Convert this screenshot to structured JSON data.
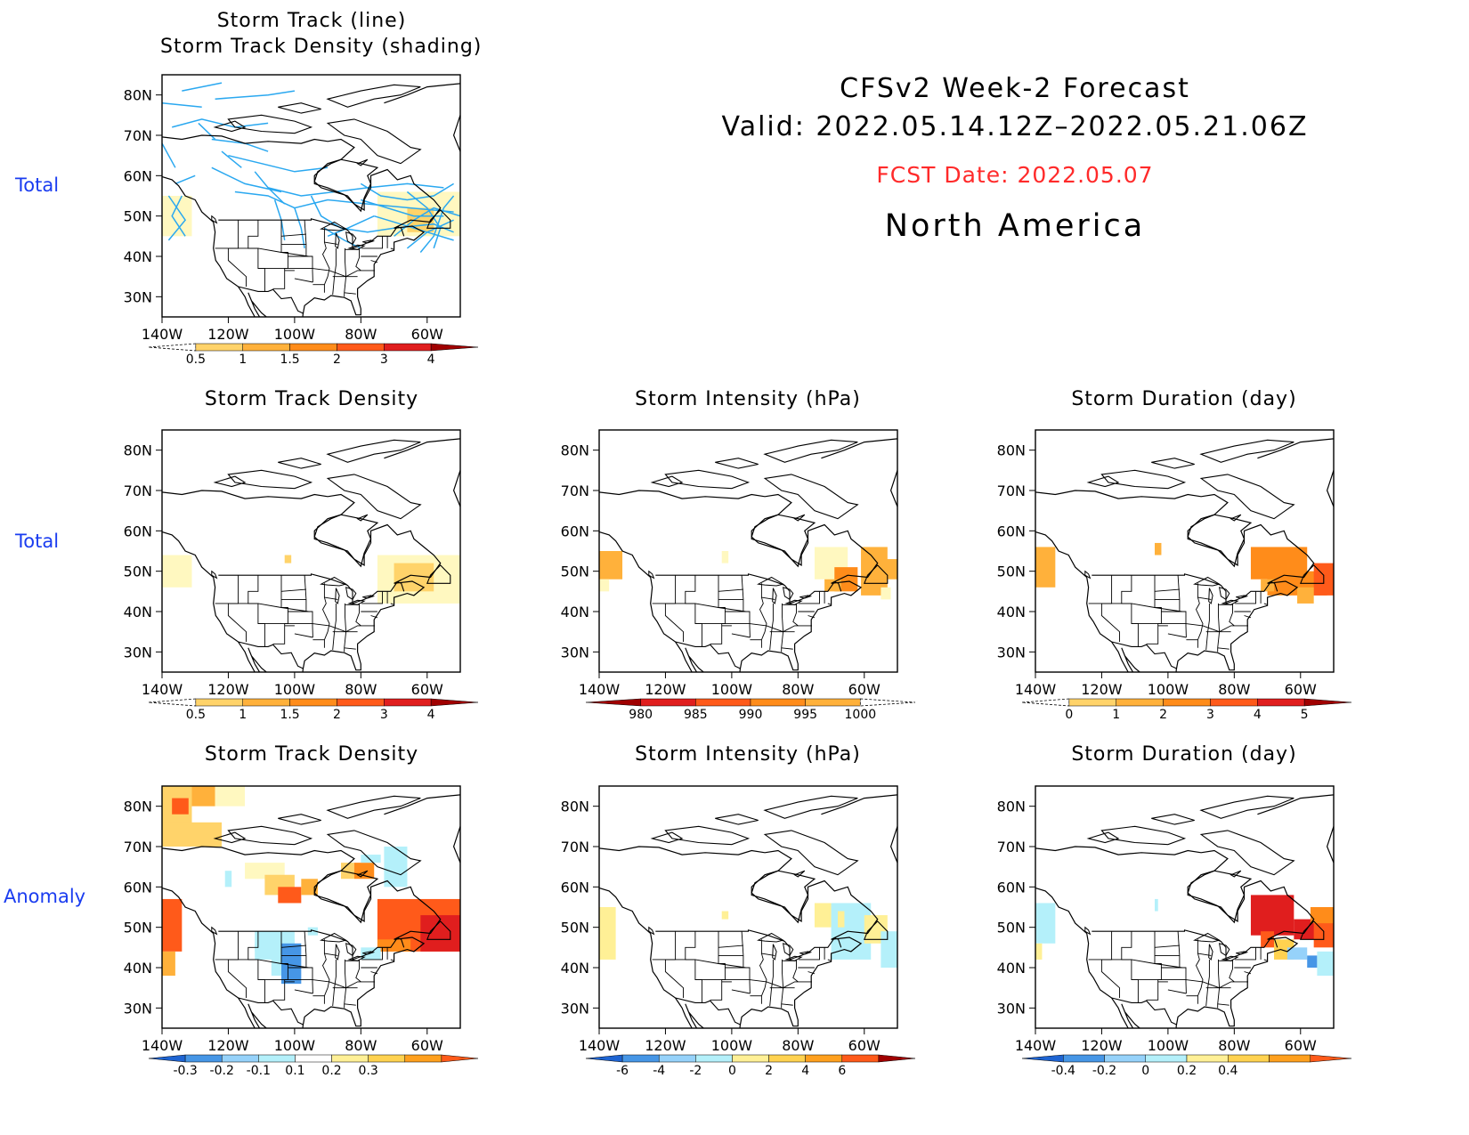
{
  "header": {
    "title": "CFSv2 Week-2 Forecast",
    "valid": "Valid: 2022.05.14.12Z–2022.05.21.06Z",
    "fcst_date": "FCST Date: 2022.05.07",
    "region": "North America",
    "fcst_color": "#ff2a2a"
  },
  "row_labels": [
    "Total",
    "Total",
    "Anomaly"
  ],
  "lat_labels": [
    "80N",
    "70N",
    "60N",
    "50N",
    "40N",
    "30N"
  ],
  "lon_labels": [
    "140W",
    "120W",
    "100W",
    "80W",
    "60W"
  ],
  "panels": [
    {
      "id": "p1",
      "title": "Storm Track (line)",
      "title2": "Storm Track Density (shading)",
      "kind": "track_total",
      "colorbar": {
        "colors": [
          "#fff8c0",
          "#ffd36a",
          "#ffb13b",
          "#ff8c1a",
          "#ff5a1a",
          "#e01e1e",
          "#a00000"
        ],
        "labels": [
          "0.5",
          "1",
          "1.5",
          "2",
          "3",
          "4"
        ],
        "dashed_left": true
      }
    },
    {
      "id": "p2",
      "title": "Storm Track Density",
      "kind": "density_total",
      "colorbar": {
        "colors": [
          "#fff8c0",
          "#ffd36a",
          "#ffb13b",
          "#ff8c1a",
          "#ff5a1a",
          "#e01e1e",
          "#a00000"
        ],
        "labels": [
          "0.5",
          "1",
          "1.5",
          "2",
          "3",
          "4"
        ],
        "dashed_left": true
      }
    },
    {
      "id": "p3",
      "title": "Storm Intensity (hPa)",
      "kind": "intensity_total",
      "colorbar": {
        "colors": [
          "#a00000",
          "#e01e1e",
          "#ff5a1a",
          "#ff8c1a",
          "#ffb13b",
          "#fff8c0"
        ],
        "labels": [
          "980",
          "985",
          "990",
          "995",
          "1000"
        ],
        "dashed_right": true
      }
    },
    {
      "id": "p4",
      "title": "Storm Duration (day)",
      "kind": "duration_total",
      "colorbar": {
        "colors": [
          "#fff8c0",
          "#ffd36a",
          "#ffb13b",
          "#ff8c1a",
          "#ff5a1a",
          "#e01e1e",
          "#a00000"
        ],
        "labels": [
          "0",
          "1",
          "2",
          "3",
          "4",
          "5"
        ],
        "dashed_left": true
      }
    },
    {
      "id": "p5",
      "title": "Storm Track Density",
      "kind": "density_anom",
      "colorbar": {
        "colors": [
          "#1e64d2",
          "#4696e6",
          "#96d2fa",
          "#b4f0fa",
          "#ffffff",
          "#fff096",
          "#ffd250",
          "#ffa01e",
          "#ff5a1a"
        ],
        "labels": [
          "-0.3",
          "-0.2",
          "-0.1",
          "0.1",
          "0.2",
          "0.3"
        ]
      }
    },
    {
      "id": "p6",
      "title": "Storm Intensity (hPa)",
      "kind": "intensity_anom",
      "colorbar": {
        "colors": [
          "#1e64d2",
          "#4696e6",
          "#96d2fa",
          "#b4f0fa",
          "#fff096",
          "#ffd250",
          "#ffa01e",
          "#ff5a1a",
          "#a00000"
        ],
        "labels": [
          "-6",
          "-4",
          "-2",
          "0",
          "2",
          "4",
          "6"
        ]
      }
    },
    {
      "id": "p7",
      "title": "Storm Duration (day)",
      "kind": "duration_anom",
      "colorbar": {
        "colors": [
          "#1e64d2",
          "#4696e6",
          "#96d2fa",
          "#b4f0fa",
          "#fff096",
          "#ffd250",
          "#ffa01e",
          "#ff5a1a"
        ],
        "labels": [
          "-0.4",
          "-0.2",
          "0",
          "0.2",
          "0.4"
        ]
      }
    }
  ]
}
